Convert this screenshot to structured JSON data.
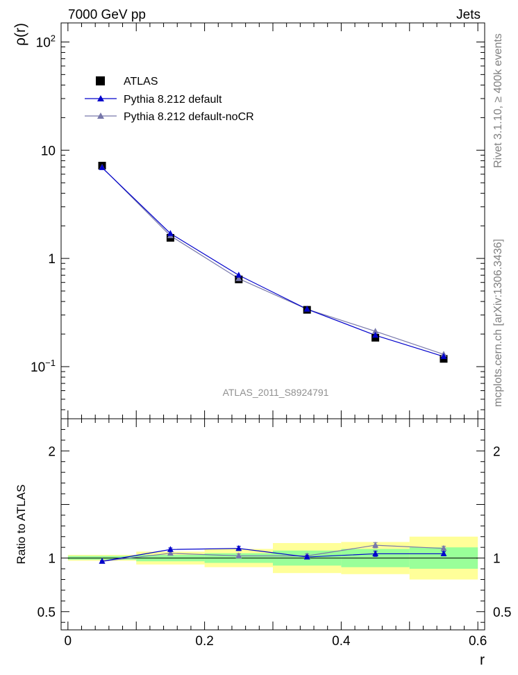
{
  "header": {
    "left_title": "7000 GeV pp",
    "right_title": "Jets",
    "side_label_top": "Rivet 3.1.10, ≥ 400k events",
    "side_label_bottom": "mcplots.cern.ch [arXiv:1306.3436]",
    "watermark": "ATLAS_2011_S8924791"
  },
  "colors": {
    "atlas": "#000000",
    "pythia_default": "#0000cc",
    "pythia_nocr": "#7777aa",
    "band_inner": "#99ff99",
    "band_outer": "#ffff99"
  },
  "chart_data": [
    {
      "type": "scatter",
      "name": "main",
      "ylabel": "ρ(r)",
      "yscale": "log",
      "xlim": [
        -0.01,
        0.61
      ],
      "ylim": [
        0.033,
        150
      ],
      "ytick_labels": [
        {
          "value": 0.1,
          "base": "10",
          "exp": "−1"
        },
        {
          "value": 1,
          "base": "1",
          "exp": ""
        },
        {
          "value": 10,
          "base": "10",
          "exp": ""
        },
        {
          "value": 100,
          "base": "10",
          "exp": "2"
        }
      ],
      "x": [
        0.05,
        0.15,
        0.25,
        0.35,
        0.45,
        0.55
      ],
      "series": [
        {
          "name": "ATLAS",
          "marker": "square",
          "values": [
            7.2,
            1.55,
            0.64,
            0.335,
            0.185,
            0.118
          ]
        },
        {
          "name": "Pythia 8.212 default",
          "marker": "triangle",
          "values": [
            6.9,
            1.7,
            0.7,
            0.34,
            0.195,
            0.124
          ]
        },
        {
          "name": "Pythia 8.212 default-noCR",
          "marker": "triangle",
          "values": [
            6.95,
            1.62,
            0.65,
            0.34,
            0.212,
            0.13
          ]
        }
      ]
    },
    {
      "type": "line",
      "name": "ratio",
      "ylabel": "Ratio to ATLAS",
      "xlabel": "r",
      "xlim": [
        -0.01,
        0.61
      ],
      "ylim": [
        0.33,
        2.3
      ],
      "xticks": [
        0,
        0.2,
        0.4,
        0.6
      ],
      "xtick_labels": [
        "0",
        "0.2",
        "0.4",
        "0.6"
      ],
      "yticks": [
        0.5,
        1,
        2
      ],
      "ytick_labels": [
        "0.5",
        "1",
        "2"
      ],
      "bins": [
        [
          0.0,
          0.1
        ],
        [
          0.1,
          0.2
        ],
        [
          0.2,
          0.3
        ],
        [
          0.3,
          0.4
        ],
        [
          0.4,
          0.5
        ],
        [
          0.5,
          0.6
        ]
      ],
      "band_inner": [
        [
          0.985,
          1.02
        ],
        [
          0.97,
          1.03
        ],
        [
          0.955,
          1.045
        ],
        [
          0.93,
          1.07
        ],
        [
          0.915,
          1.085
        ],
        [
          0.9,
          1.1
        ]
      ],
      "band_outer": [
        [
          0.975,
          1.03
        ],
        [
          0.94,
          1.06
        ],
        [
          0.915,
          1.085
        ],
        [
          0.86,
          1.14
        ],
        [
          0.85,
          1.15
        ],
        [
          0.8,
          1.2
        ]
      ],
      "x": [
        0.05,
        0.15,
        0.25,
        0.35,
        0.45,
        0.55
      ],
      "series": [
        {
          "name": "Pythia 8.212 default",
          "values": [
            0.97,
            1.08,
            1.09,
            1.01,
            1.04,
            1.04
          ],
          "errors": [
            0.005,
            0.015,
            0.02,
            0.015,
            0.025,
            0.02
          ]
        },
        {
          "name": "Pythia 8.212 default-noCR",
          "values": [
            0.97,
            1.045,
            1.02,
            1.02,
            1.12,
            1.09
          ],
          "errors": [
            0.005,
            0.015,
            0.02,
            0.02,
            0.025,
            0.02
          ]
        }
      ]
    }
  ]
}
